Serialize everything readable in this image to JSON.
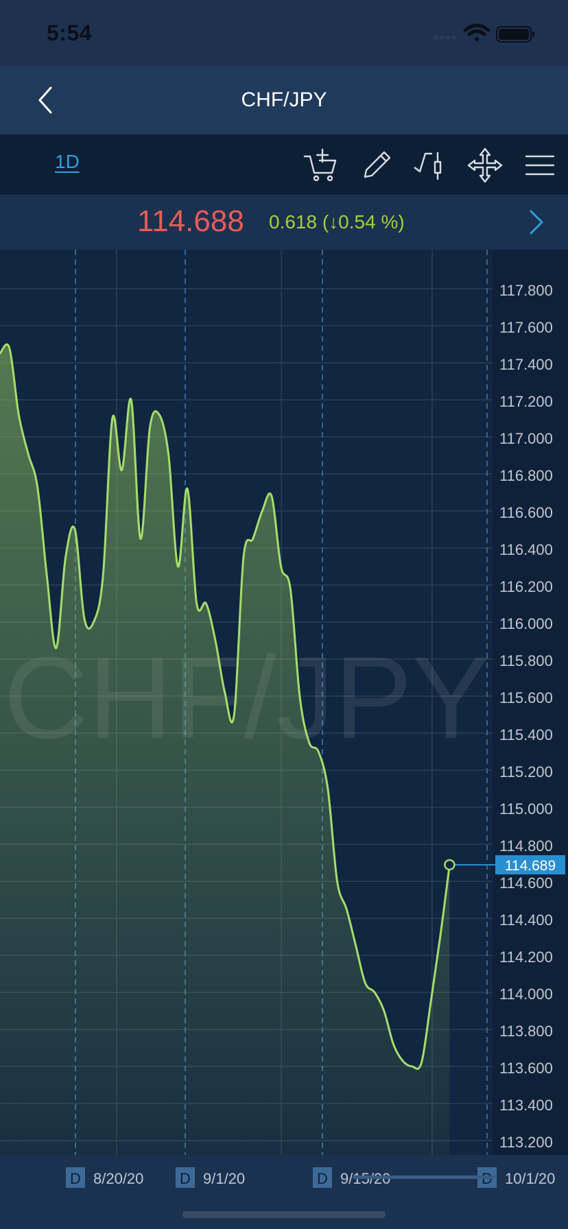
{
  "status_bar": {
    "time": "5:54"
  },
  "nav": {
    "title": "CHF/JPY",
    "back_icon": "chevron-left-icon"
  },
  "toolbar": {
    "timeframe": "1D",
    "tools": [
      {
        "name": "add-to-cart-icon"
      },
      {
        "name": "pencil-icon"
      },
      {
        "name": "indicator-icon"
      },
      {
        "name": "move-icon"
      },
      {
        "name": "menu-icon"
      }
    ]
  },
  "price_bar": {
    "price": "114.688",
    "change": "0.618 (↓0.54 %)",
    "next_icon": "chevron-right-icon"
  },
  "colors": {
    "background": "#0f2138",
    "line": "#a6dd6b",
    "price_red": "#ec5b55",
    "change_green": "#a7cf38",
    "accent_blue": "#2f9fe0",
    "current_tag": "#2a8fd0"
  },
  "chart_data": {
    "type": "area",
    "watermark": "CHF/JPY",
    "y_ticks": [
      "117.800",
      "117.600",
      "117.400",
      "117.200",
      "117.000",
      "116.800",
      "116.600",
      "116.400",
      "116.200",
      "116.000",
      "115.800",
      "115.600",
      "115.400",
      "115.200",
      "115.000",
      "114.800",
      "114.600",
      "114.400",
      "114.200",
      "114.000",
      "113.800",
      "113.600",
      "113.400",
      "113.200"
    ],
    "ylim": [
      113.12,
      118.09
    ],
    "x_labels": [
      {
        "marker": "D",
        "date": "8/20/20"
      },
      {
        "marker": "D",
        "date": "9/1/20"
      },
      {
        "marker": "D",
        "date": "9/15/20"
      },
      {
        "marker": "D",
        "date": "10/1/20"
      }
    ],
    "current_price_label": "114.689",
    "current_price": 114.689,
    "series": [
      {
        "x": [
          "8/10/20",
          "8/11/20",
          "8/12/20",
          "8/13/20",
          "8/14/20",
          "8/15/20",
          "8/16/20",
          "8/17/20",
          "8/18/20",
          "8/19/20",
          "8/20/20",
          "8/21/20",
          "8/22/20",
          "8/23/20",
          "8/24/20",
          "8/25/20",
          "8/26/20",
          "8/27/20",
          "8/28/20",
          "8/29/20",
          "8/30/20",
          "8/31/20",
          "9/1/20",
          "9/2/20",
          "9/3/20",
          "9/4/20",
          "9/5/20",
          "9/6/20",
          "9/7/20",
          "9/8/20",
          "9/9/20",
          "9/10/20",
          "9/11/20",
          "9/12/20",
          "9/13/20",
          "9/14/20",
          "9/15/20",
          "9/16/20",
          "9/17/20",
          "9/18/20",
          "9/19/20",
          "9/20/20",
          "9/21/20",
          "9/22/20",
          "9/23/20",
          "9/24/20",
          "9/25/20",
          "9/26/20",
          "9/27/20",
          "9/28/20",
          "9/29/20",
          "9/30/20",
          "10/1/20"
        ],
        "y": [
          117.45,
          117.48,
          117.12,
          116.91,
          116.73,
          116.25,
          115.86,
          116.35,
          116.5,
          116.02,
          116.0,
          116.25,
          117.1,
          116.82,
          117.2,
          116.45,
          117.05,
          117.12,
          116.9,
          116.3,
          116.72,
          116.1,
          116.1,
          115.9,
          115.62,
          115.5,
          116.35,
          116.45,
          116.6,
          116.68,
          116.3,
          116.18,
          115.6,
          115.35,
          115.3,
          115.1,
          114.6,
          114.45,
          114.25,
          114.05,
          114.0,
          113.9,
          113.72,
          113.63,
          113.6,
          113.62,
          113.95,
          114.3,
          114.689,
          null,
          null,
          null,
          null
        ]
      }
    ]
  }
}
